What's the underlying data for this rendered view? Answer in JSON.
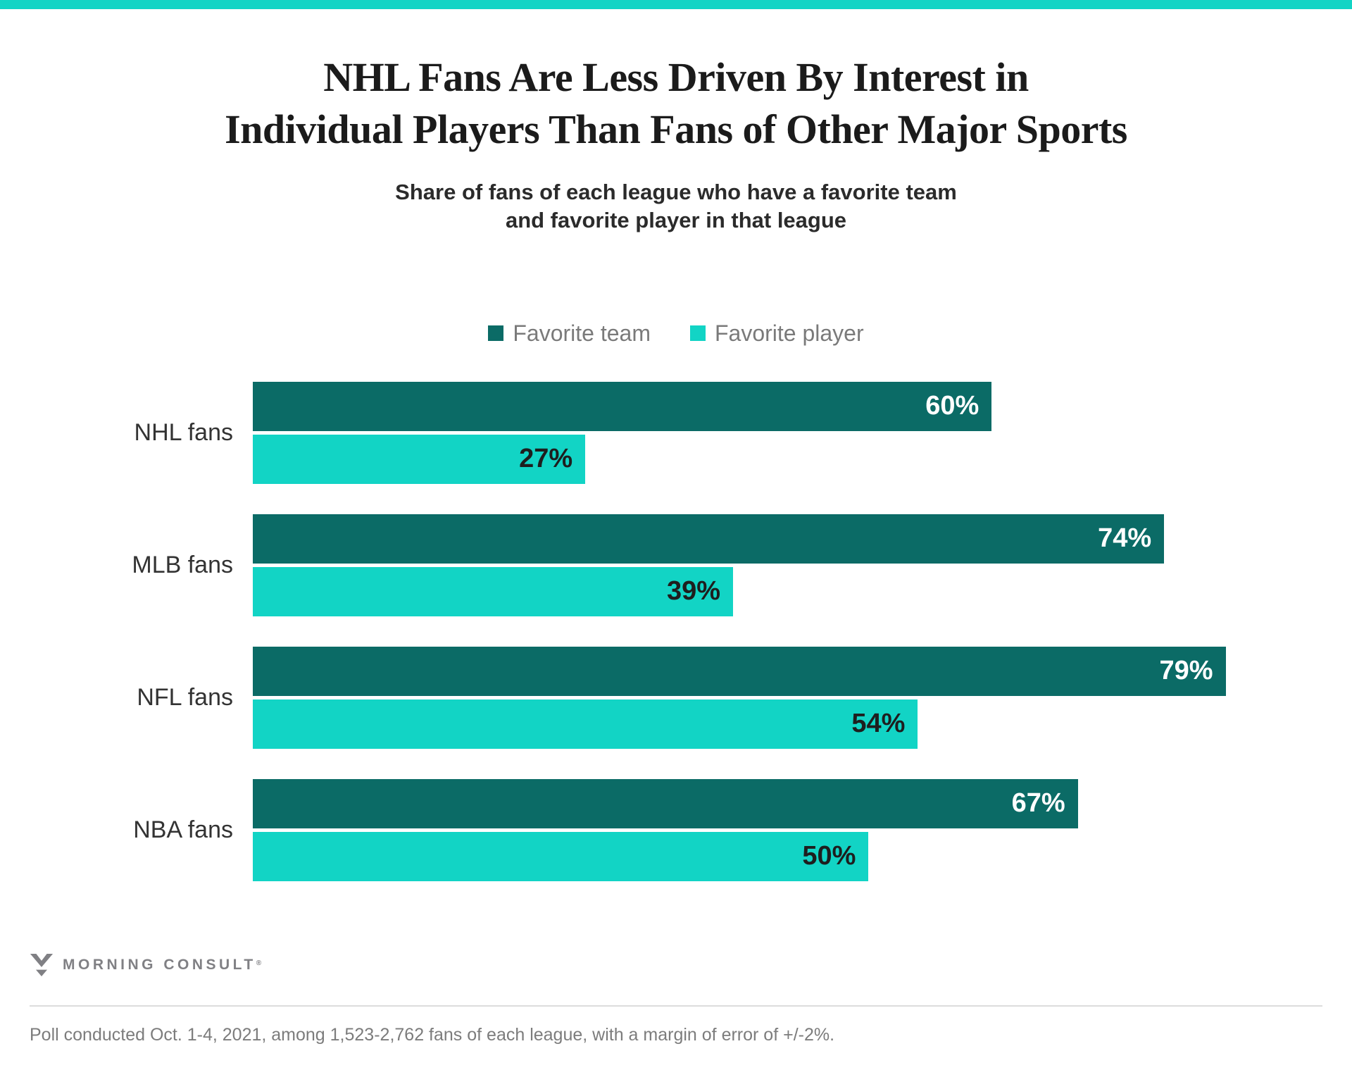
{
  "page": {
    "top_bar_color": "#12D4C5",
    "background_color": "#FFFFFF"
  },
  "chart_data": {
    "type": "bar",
    "orientation": "horizontal",
    "title": "NHL Fans Are Less Driven By Interest in Individual Players Than Fans of Other Major Sports",
    "title_lines": [
      "NHL Fans Are Less Driven By Interest in",
      "Individual Players Than Fans of Other Major Sports"
    ],
    "subtitle": "Share of fans of each league who have a favorite team and favorite player in that league",
    "subtitle_lines": [
      "Share of fans of each league who have a favorite team",
      "and favorite player in that league"
    ],
    "categories": [
      "NHL fans",
      "MLB fans",
      "NFL fans",
      "NBA fans"
    ],
    "series": [
      {
        "name": "Favorite team",
        "color": "#0B6B66",
        "values": [
          60,
          74,
          79,
          67
        ],
        "value_labels": [
          "60%",
          "74%",
          "79%",
          "67%"
        ],
        "label_color": "#FFFFFF"
      },
      {
        "name": "Favorite player",
        "color": "#12D4C5",
        "values": [
          27,
          39,
          54,
          50
        ],
        "value_labels": [
          "27%",
          "39%",
          "54%",
          "50%"
        ],
        "label_color": "#1E1E1E"
      }
    ],
    "xlim": [
      0,
      86.4
    ],
    "grid": false,
    "legend_position": "top-center",
    "value_label_position": "inside-end"
  },
  "footer": {
    "logo_text": "MORNING CONSULT",
    "registered_mark": "®",
    "note": "Poll conducted Oct. 1-4, 2021, among 1,523-2,762 fans of each league, with a margin of error of +/-2%."
  }
}
